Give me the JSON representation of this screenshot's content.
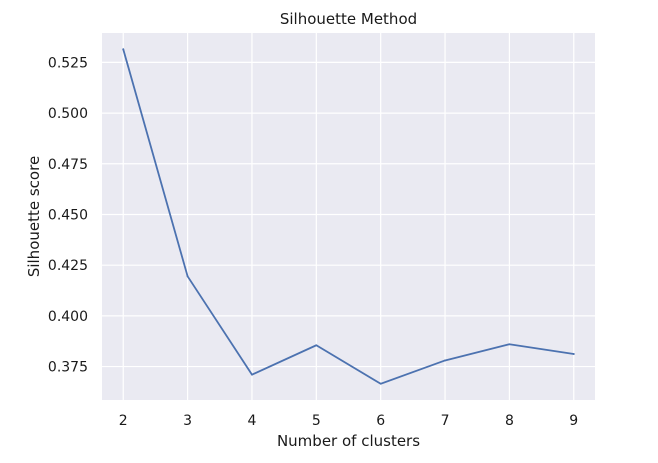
{
  "chart_data": {
    "type": "line",
    "title": "Silhouette Method",
    "xlabel": "Number of clusters",
    "ylabel": "Silhouette score",
    "x": [
      2,
      3,
      4,
      5,
      6,
      7,
      8,
      9
    ],
    "series": [
      {
        "values": [
          0.5315,
          0.4195,
          0.371,
          0.3855,
          0.3665,
          0.378,
          0.386,
          0.3812
        ]
      }
    ],
    "xticks": [
      "2",
      "3",
      "4",
      "5",
      "6",
      "7",
      "8",
      "9"
    ],
    "yticks": [
      "0.375",
      "0.400",
      "0.425",
      "0.450",
      "0.475",
      "0.500",
      "0.525"
    ],
    "xlim": [
      1.67,
      9.33
    ],
    "ylim": [
      0.3585,
      0.5395
    ],
    "grid": true,
    "colors": {
      "background": "#eaeaf2",
      "grid": "#ffffff",
      "line": "#4c72b0"
    }
  }
}
